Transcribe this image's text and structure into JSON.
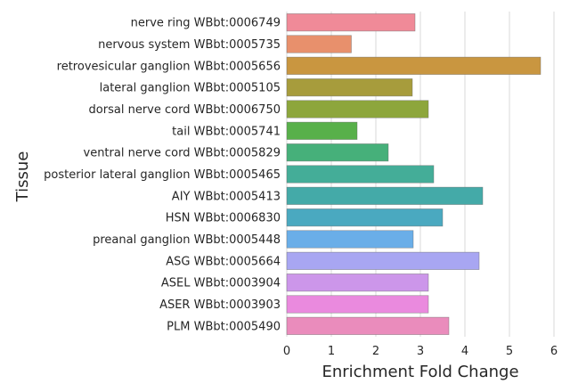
{
  "chart_data": {
    "type": "bar",
    "orientation": "horizontal",
    "xlabel": "Enrichment Fold Change",
    "ylabel": "Tissue",
    "xlim": [
      0,
      6
    ],
    "x_ticks": [
      "0",
      "1",
      "2",
      "3",
      "4",
      "5",
      "6"
    ],
    "grid": true,
    "categories": [
      "nerve ring WBbt:0006749",
      "nervous system WBbt:0005735",
      "retrovesicular ganglion WBbt:0005656",
      "lateral ganglion WBbt:0005105",
      "dorsal nerve cord WBbt:0006750",
      "tail WBbt:0005741",
      "ventral nerve cord WBbt:0005829",
      "posterior lateral ganglion WBbt:0005465",
      "AIY WBbt:0005413",
      "HSN WBbt:0006830",
      "preanal ganglion WBbt:0005448",
      "ASG WBbt:0005664",
      "ASEL WBbt:0003904",
      "ASER WBbt:0003903",
      "PLM WBbt:0005490"
    ],
    "values": [
      2.88,
      1.45,
      5.7,
      2.82,
      3.18,
      1.58,
      2.28,
      3.3,
      4.4,
      3.5,
      2.84,
      4.32,
      3.18,
      3.18,
      3.64
    ],
    "colors": [
      "#f08a98",
      "#e8906c",
      "#c99640",
      "#a79c3c",
      "#8da63c",
      "#58b04a",
      "#46b07a",
      "#44ad98",
      "#44aaa8",
      "#4aa9c0",
      "#6aaee8",
      "#a8a6f2",
      "#cc96ea",
      "#ea8ade",
      "#ea8cbc"
    ]
  }
}
